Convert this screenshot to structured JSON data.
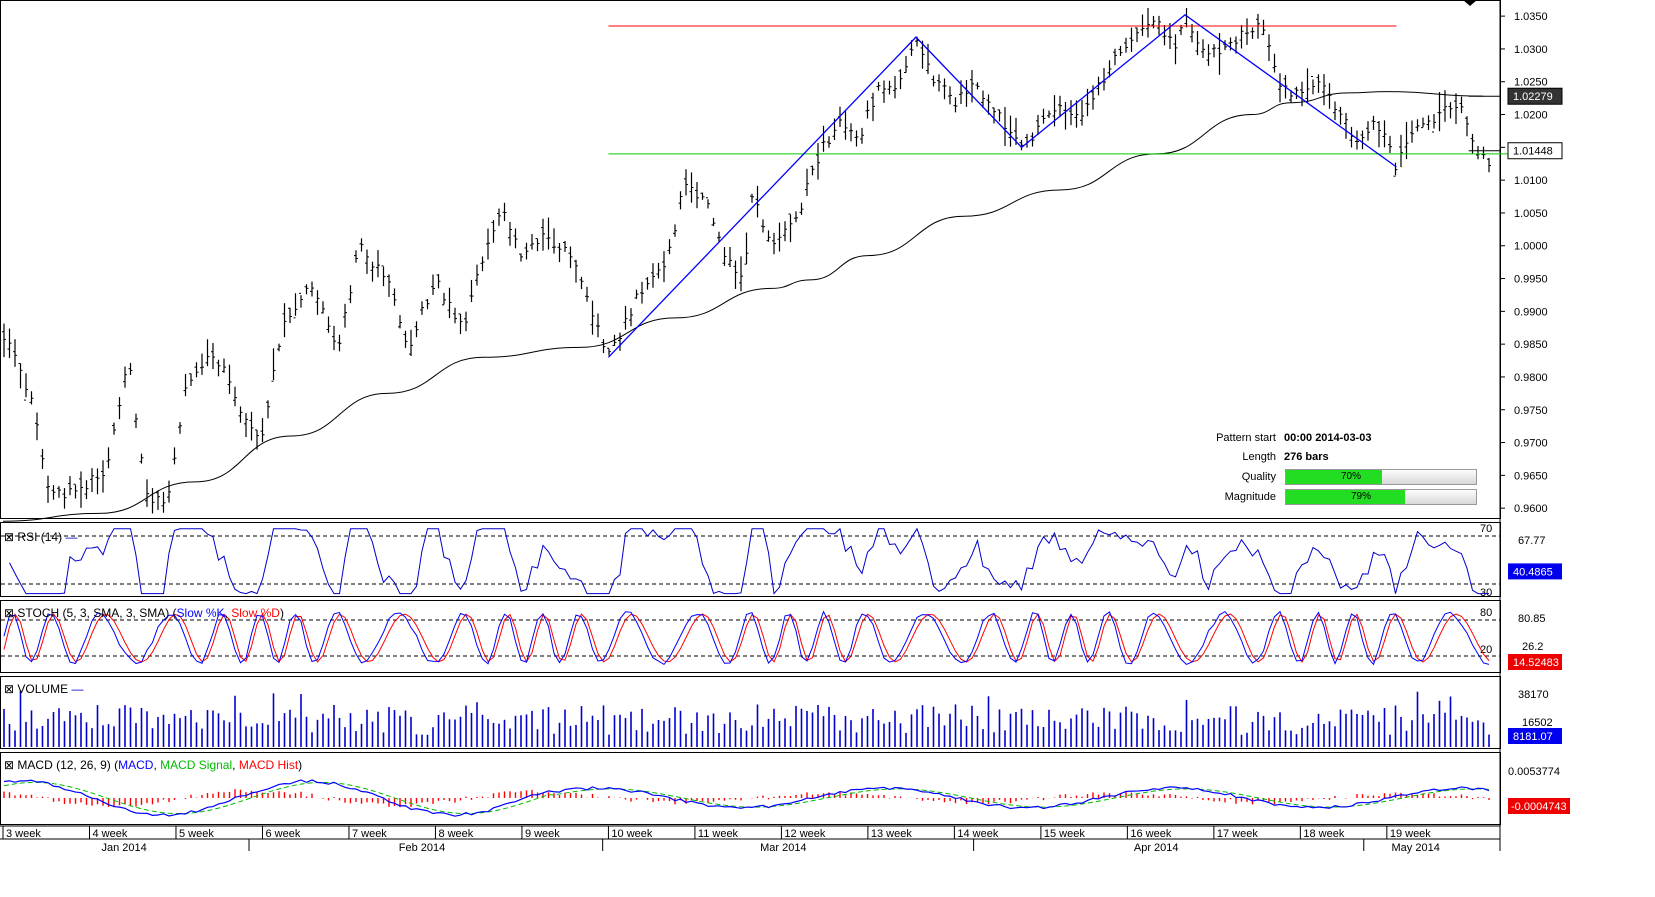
{
  "chart_data": {
    "type": "technical",
    "main": {
      "type": "bar",
      "y_ticks": [
        "1.0350",
        "1.0300",
        "1.0250",
        "1.0200",
        "1.0150",
        "1.0100",
        "1.0050",
        "1.0000",
        "0.9950",
        "0.9900",
        "0.9850",
        "0.9800",
        "0.9750",
        "0.9700",
        "0.9650",
        "0.9600"
      ],
      "ylim": [
        0.9585,
        1.037
      ],
      "price_tags": [
        {
          "label": "1.02279",
          "value": 1.02279,
          "bg": "#333333"
        },
        {
          "label": "1.01448",
          "value": 1.01448,
          "bg": "#ffffff"
        }
      ],
      "resistance": {
        "value": 1.0335,
        "x_start": 31.5,
        "x_end": 72.5,
        "color": "#ff0000"
      },
      "support": {
        "value": 1.014,
        "x_start": 31.5,
        "x_end": 78.5,
        "color": "#00cc00"
      },
      "pattern_line": [
        [
          31.5,
          0.983
        ],
        [
          47.5,
          1.0318
        ],
        [
          53,
          1.015
        ],
        [
          61.5,
          1.0352
        ],
        [
          72.5,
          1.012
        ]
      ],
      "pattern_line_color": "#0000ff",
      "sma_curve": [
        [
          0,
          0.958
        ],
        [
          5,
          0.9592
        ],
        [
          10,
          0.964
        ],
        [
          15,
          0.971
        ],
        [
          20,
          0.9775
        ],
        [
          25,
          0.983
        ],
        [
          30,
          0.9845
        ],
        [
          35,
          0.989
        ],
        [
          40,
          0.9935
        ],
        [
          42,
          0.9948
        ],
        [
          45,
          0.9985
        ],
        [
          50,
          1.0045
        ],
        [
          55,
          1.0085
        ],
        [
          60,
          1.014
        ],
        [
          65,
          1.02
        ],
        [
          67,
          1.0218
        ],
        [
          70,
          1.0233
        ],
        [
          72,
          1.0235
        ],
        [
          77,
          1.0228
        ]
      ],
      "pivots": [
        [
          0,
          0.987
        ],
        [
          1.5,
          0.976
        ],
        [
          2.5,
          0.9615
        ],
        [
          4,
          0.963
        ],
        [
          5.5,
          0.9665
        ],
        [
          6.5,
          0.983
        ],
        [
          7.5,
          0.962
        ],
        [
          8.5,
          0.961
        ],
        [
          9.5,
          0.978
        ],
        [
          11,
          0.984
        ],
        [
          12.5,
          0.974
        ],
        [
          13.5,
          0.9705
        ],
        [
          14.5,
          0.988
        ],
        [
          16,
          0.994
        ],
        [
          17.5,
          0.9845
        ],
        [
          18.5,
          1.0
        ],
        [
          20,
          0.995
        ],
        [
          21,
          0.984
        ],
        [
          22.5,
          0.995
        ],
        [
          24,
          0.987
        ],
        [
          25,
          0.999
        ],
        [
          26,
          1.005
        ],
        [
          27,
          0.998
        ],
        [
          28,
          1.002
        ],
        [
          29.5,
          0.999
        ],
        [
          31.5,
          0.983
        ],
        [
          33,
          0.992
        ],
        [
          34.5,
          0.997
        ],
        [
          35.5,
          1.01
        ],
        [
          36.5,
          1.007
        ],
        [
          37.5,
          0.999
        ],
        [
          38.5,
          0.994
        ],
        [
          39,
          1.008
        ],
        [
          40,
          0.999
        ],
        [
          41.5,
          1.006
        ],
        [
          42.5,
          1.014
        ],
        [
          43.5,
          1.019
        ],
        [
          44.5,
          1.016
        ],
        [
          45.5,
          1.024
        ],
        [
          46.5,
          1.024
        ],
        [
          47.5,
          1.0318
        ],
        [
          48.5,
          1.025
        ],
        [
          49.5,
          1.022
        ],
        [
          50.5,
          1.024
        ],
        [
          51.5,
          1.0215
        ],
        [
          52.5,
          1.017
        ],
        [
          53,
          1.015
        ],
        [
          54,
          1.0185
        ],
        [
          55,
          1.021
        ],
        [
          56,
          1.019
        ],
        [
          57,
          1.024
        ],
        [
          58,
          1.029
        ],
        [
          59,
          1.032
        ],
        [
          60,
          1.0345
        ],
        [
          61,
          1.03
        ],
        [
          61.5,
          1.0352
        ],
        [
          62.5,
          1.029
        ],
        [
          63.5,
          1.03
        ],
        [
          64.5,
          1.032
        ],
        [
          65.5,
          1.034
        ],
        [
          66.5,
          1.0245
        ],
        [
          67.5,
          1.0225
        ],
        [
          68.5,
          1.025
        ],
        [
          69.5,
          1.02
        ],
        [
          70.5,
          1.016
        ],
        [
          71.5,
          1.019
        ],
        [
          72.5,
          1.012
        ],
        [
          73.5,
          1.018
        ],
        [
          74.5,
          1.0195
        ],
        [
          75.5,
          1.021
        ],
        [
          76,
          1.0215
        ],
        [
          76.5,
          1.0145
        ],
        [
          77,
          1.013
        ]
      ]
    },
    "rsi": {
      "label": "RSI (14)",
      "levels": [
        {
          "label": "70",
          "value": 70
        },
        {
          "label": "30",
          "value": 30
        }
      ],
      "right_label": "67.77",
      "tag": "40.4865"
    },
    "stoch": {
      "label_prefix": "STOCH (5, 3, SMA, 3, SMA) (",
      "k_label": "Slow %K",
      "sep": ", ",
      "d_label": "Slow %D",
      "label_suffix": ")",
      "levels": [
        {
          "label": "80",
          "value": 80
        },
        {
          "label": "20",
          "value": 20
        }
      ],
      "right_labels": [
        "80.85",
        "26.2"
      ],
      "tag": "14.52483"
    },
    "volume": {
      "label": "VOLUME",
      "right_labels": [
        "38170",
        "16502"
      ],
      "tag": "8181.07"
    },
    "macd": {
      "label_prefix": "MACD (12, 26, 9) (",
      "macd_label": "MACD",
      "signal_label": "MACD Signal",
      "hist_label": "MACD Hist",
      "label_suffix": ")",
      "right_label": "0.0053774",
      "tag": "-0.0004743"
    },
    "x_axis": {
      "weeks": [
        {
          "label": "3 week",
          "x": 0
        },
        {
          "label": "4 week",
          "x": 4.5
        },
        {
          "label": "5 week",
          "x": 9
        },
        {
          "label": "6 week",
          "x": 13.5
        },
        {
          "label": "7 week",
          "x": 18
        },
        {
          "label": "8 week",
          "x": 22.5
        },
        {
          "label": "9 week",
          "x": 27
        },
        {
          "label": "10 week",
          "x": 31.5
        },
        {
          "label": "11 week",
          "x": 36
        },
        {
          "label": "12 week",
          "x": 40.5
        },
        {
          "label": "13 week",
          "x": 45
        },
        {
          "label": "14 week",
          "x": 49.5
        },
        {
          "label": "15 week",
          "x": 54
        },
        {
          "label": "16 week",
          "x": 58.5
        },
        {
          "label": "17 week",
          "x": 63
        },
        {
          "label": "18 week",
          "x": 67.5
        },
        {
          "label": "19 week",
          "x": 72
        }
      ],
      "months": [
        {
          "label": "Jan 2014",
          "center": 6.3,
          "sep": 12.8
        },
        {
          "label": "Feb 2014",
          "center": 21.8,
          "sep": 31.2
        },
        {
          "label": "Mar 2014",
          "center": 40.6,
          "sep": 50.5
        },
        {
          "label": "Apr 2014",
          "center": 60.0,
          "sep": 70.8
        },
        {
          "label": "May 2014",
          "center": 73.5,
          "sep": null
        }
      ]
    }
  },
  "pattern_info": {
    "start_label": "Pattern start",
    "start_value": "00:00 2014-03-03",
    "length_label": "Length",
    "length_value": "276 bars",
    "quality_label": "Quality",
    "quality_text": "70%",
    "quality": 0.7,
    "magnitude_label": "Magnitude",
    "magnitude_text": "79%",
    "magnitude": 0.79
  },
  "colors": {
    "bars": "#000000",
    "sma": "#000000",
    "rsi": "#0000cc",
    "stoch_k": "#0000ff",
    "stoch_d": "#ff0000",
    "volume": "#0000cc",
    "macd": "#0000ff",
    "macd_signal": "#00bb00",
    "macd_hist": "#ff0000",
    "meter_fill": "#22dd22",
    "tag_blue": "#0000ee"
  }
}
